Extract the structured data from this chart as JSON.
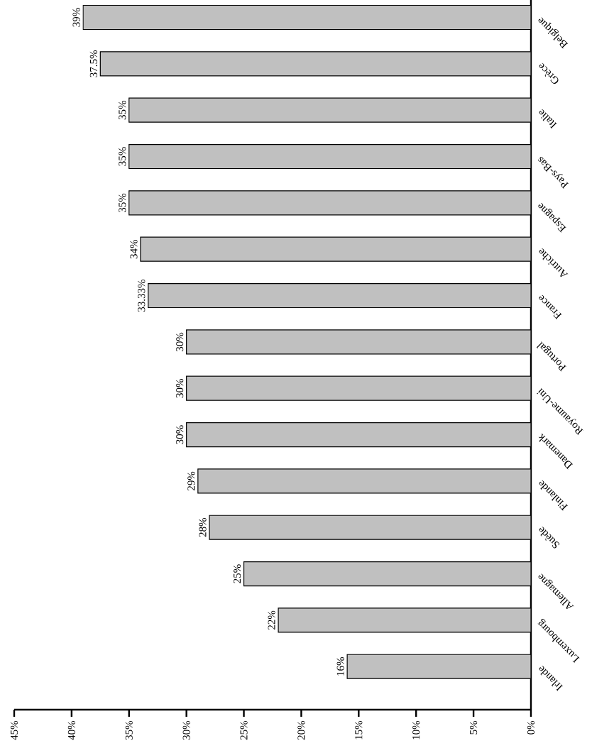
{
  "chart_data": {
    "type": "bar",
    "orientation": "horizontal",
    "categories": [
      "Belgique",
      "Grèce",
      "Italie",
      "Pays-Bas",
      "Espagne",
      "Autriche",
      "France",
      "Portugal",
      "Royaume-Uni",
      "Danemark",
      "Finlande",
      "Suède",
      "Allemagne",
      "Luxembourg",
      "Irlande"
    ],
    "values": [
      39,
      37.5,
      35,
      35,
      35,
      34,
      33.33,
      30,
      30,
      30,
      29,
      28,
      25,
      22,
      16
    ],
    "value_labels": [
      "39%",
      "37.5%",
      "35%",
      "35%",
      "35%",
      "34%",
      "33.33%",
      "30%",
      "30%",
      "30%",
      "29%",
      "28%",
      "25%",
      "22%",
      "16%"
    ],
    "color": "#c0c0c0",
    "xlim": [
      45,
      0
    ],
    "xticks": [
      {
        "value": 0,
        "label": "0%"
      },
      {
        "value": 5,
        "label": "5%"
      },
      {
        "value": 10,
        "label": "10%"
      },
      {
        "value": 15,
        "label": "15%"
      },
      {
        "value": 20,
        "label": "20%"
      },
      {
        "value": 25,
        "label": "25%"
      },
      {
        "value": 30,
        "label": "30%"
      },
      {
        "value": 35,
        "label": "35%"
      },
      {
        "value": 40,
        "label": "40%"
      },
      {
        "value": 45,
        "label": "45%"
      }
    ],
    "grid": false
  }
}
